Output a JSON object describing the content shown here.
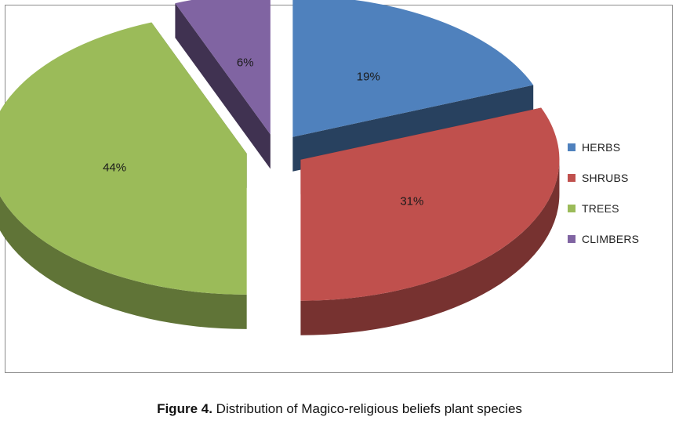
{
  "chart_data": {
    "type": "pie",
    "title": "",
    "categories": [
      "HERBS",
      "SHRUBS",
      "TREES",
      "CLIMBERS"
    ],
    "values": [
      19,
      31,
      44,
      6
    ],
    "data_labels": [
      "19%",
      "31%",
      "44%",
      "6%"
    ],
    "colors": [
      "#4f81bd",
      "#c0504d",
      "#9bbb59",
      "#8064a2"
    ],
    "style": "3d-exploded",
    "legend_position": "right"
  },
  "caption": {
    "label": "Figure 4.",
    "text": "Distribution of Magico-religious beliefs plant species"
  }
}
